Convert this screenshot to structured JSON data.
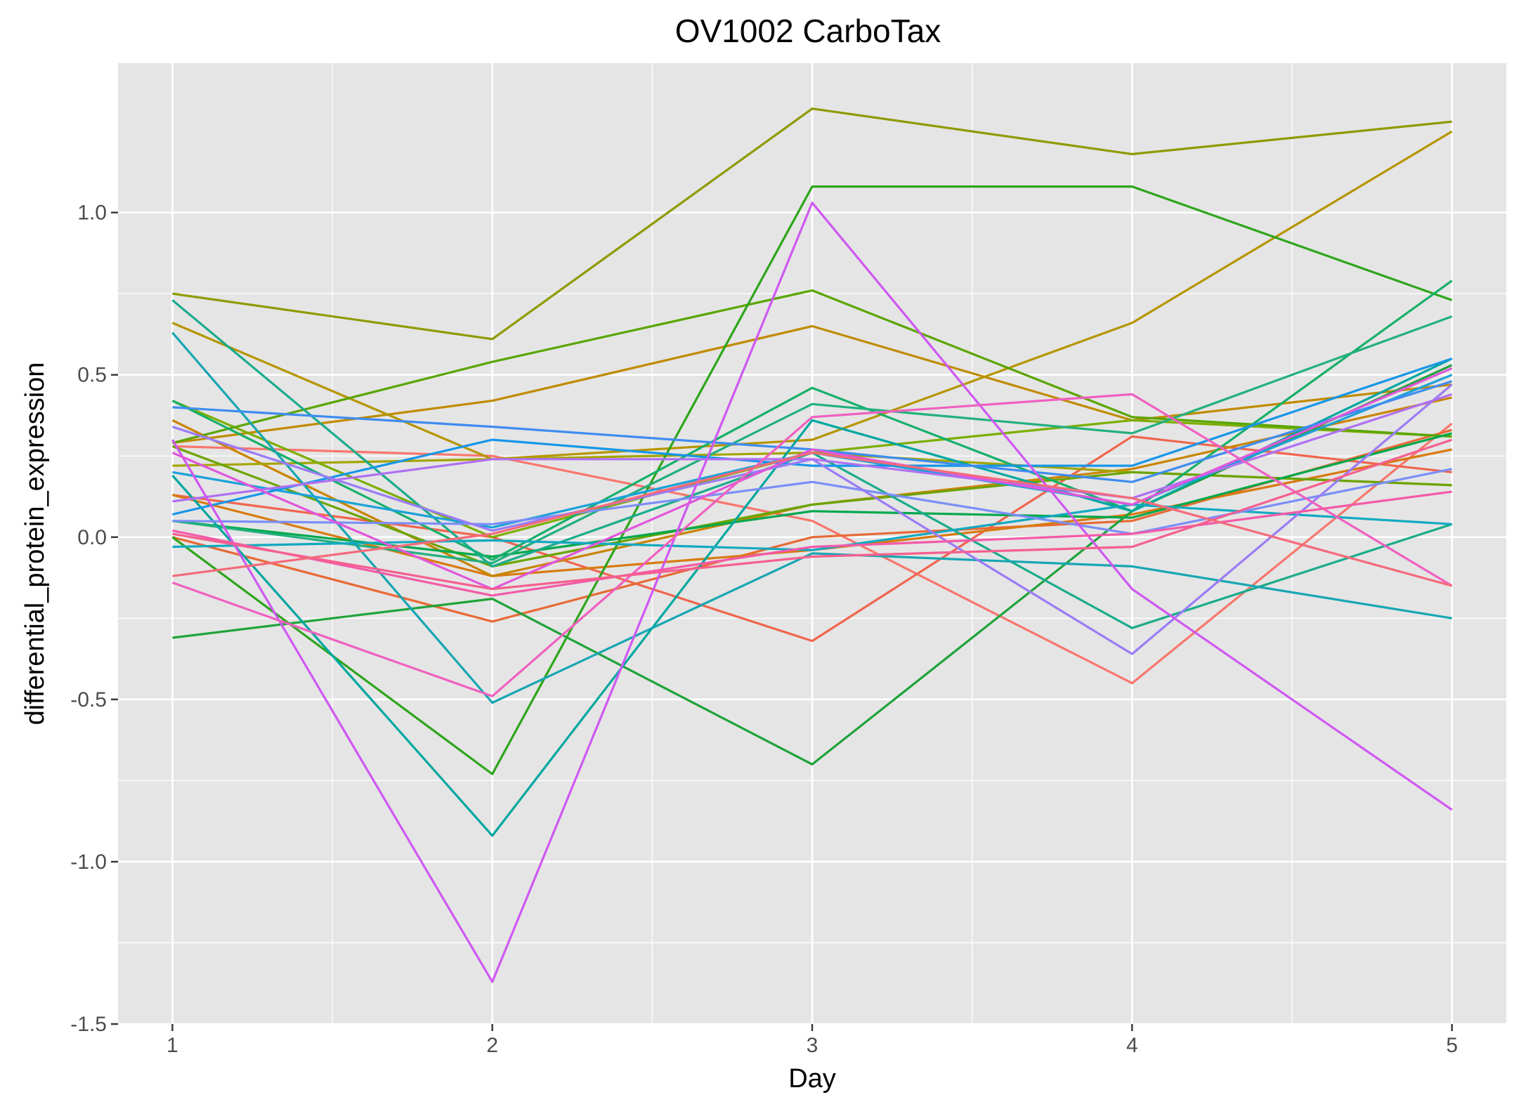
{
  "chart_data": {
    "type": "line",
    "title": "OV1002 CarboTax",
    "xlabel": "Day",
    "ylabel": "differential_protein_expression",
    "x": [
      1,
      2,
      3,
      4,
      5
    ],
    "xlim": [
      0.83,
      5.17
    ],
    "ylim": [
      -1.5,
      1.46
    ],
    "xticks": [
      "1",
      "2",
      "3",
      "4",
      "5"
    ],
    "yticks": [
      "-1.5",
      "-1.0",
      "-0.5",
      "0.0",
      "0.5",
      "1.0"
    ],
    "ytick_values": [
      -1.5,
      -1.0,
      -0.5,
      0.0,
      0.5,
      1.0
    ],
    "grid": true,
    "legend": "none",
    "background": "#e5e5e5",
    "series": [
      {
        "color": "#f8766d",
        "values": [
          0.28,
          0.25,
          0.05,
          -0.45,
          0.35
        ]
      },
      {
        "color": "#f0654e",
        "values": [
          0.13,
          0.0,
          -0.32,
          0.31,
          0.2
        ]
      },
      {
        "color": "#e86a36",
        "values": [
          0.0,
          -0.26,
          0.0,
          0.05,
          0.33
        ]
      },
      {
        "color": "#d87a10",
        "values": [
          0.13,
          -0.12,
          -0.04,
          0.07,
          0.27
        ]
      },
      {
        "color": "#c98400",
        "values": [
          0.36,
          -0.12,
          0.1,
          0.21,
          0.43
        ]
      },
      {
        "color": "#c08b00",
        "values": [
          0.29,
          0.42,
          0.65,
          0.36,
          0.47
        ]
      },
      {
        "color": "#b59500",
        "values": [
          0.66,
          0.24,
          0.3,
          0.66,
          1.25
        ]
      },
      {
        "color": "#a3a500",
        "values": [
          0.22,
          0.24,
          0.26,
          0.2,
          0.16
        ]
      },
      {
        "color": "#8f9a00",
        "values": [
          0.75,
          0.61,
          1.32,
          1.18,
          1.28
        ]
      },
      {
        "color": "#7cae00",
        "values": [
          0.42,
          0.0,
          0.26,
          0.36,
          0.31
        ]
      },
      {
        "color": "#6ba400",
        "values": [
          0.28,
          -0.09,
          0.1,
          0.2,
          0.16
        ]
      },
      {
        "color": "#5aa500",
        "values": [
          0.29,
          0.54,
          0.76,
          0.37,
          0.31
        ]
      },
      {
        "color": "#2ea51c",
        "values": [
          0.0,
          -0.73,
          1.08,
          1.08,
          0.73
        ]
      },
      {
        "color": "#1fa33a",
        "values": [
          -0.31,
          -0.19,
          -0.7,
          0.08,
          0.53
        ]
      },
      {
        "color": "#00a84c",
        "values": [
          0.05,
          -0.06,
          0.08,
          0.06,
          0.32
        ]
      },
      {
        "color": "#16b06a",
        "values": [
          0.42,
          -0.07,
          0.46,
          0.08,
          0.79
        ]
      },
      {
        "color": "#22b07e",
        "values": [
          0.05,
          -0.08,
          0.41,
          0.32,
          0.68
        ]
      },
      {
        "color": "#1aac8c",
        "values": [
          0.73,
          -0.09,
          0.26,
          -0.28,
          0.04
        ]
      },
      {
        "color": "#00a7a0",
        "values": [
          0.19,
          -0.92,
          0.36,
          0.08,
          0.55
        ]
      },
      {
        "color": "#17a6b2",
        "values": [
          0.63,
          -0.51,
          -0.05,
          -0.09,
          -0.25
        ]
      },
      {
        "color": "#12a9c0",
        "values": [
          -0.03,
          -0.01,
          -0.04,
          0.1,
          0.04
        ]
      },
      {
        "color": "#1ba2d8",
        "values": [
          0.2,
          0.03,
          0.26,
          0.1,
          0.5
        ]
      },
      {
        "color": "#1696e8",
        "values": [
          0.07,
          0.3,
          0.22,
          0.22,
          0.55
        ]
      },
      {
        "color": "#3e8cf0",
        "values": [
          0.4,
          0.34,
          0.27,
          0.17,
          0.48
        ]
      },
      {
        "color": "#7a8ef8",
        "values": [
          0.05,
          0.04,
          0.17,
          0.01,
          0.21
        ]
      },
      {
        "color": "#9b7bf6",
        "values": [
          0.34,
          0.02,
          0.24,
          -0.36,
          0.47
        ]
      },
      {
        "color": "#b070f2",
        "values": [
          0.11,
          0.24,
          0.24,
          0.12,
          0.44
        ]
      },
      {
        "color": "#cf58f2",
        "values": [
          0.3,
          -1.37,
          1.03,
          -0.16,
          -0.84
        ]
      },
      {
        "color": "#e056dc",
        "values": [
          0.26,
          -0.16,
          0.27,
          0.1,
          0.52
        ]
      },
      {
        "color": "#f060c0",
        "values": [
          -0.14,
          -0.49,
          0.37,
          0.44,
          -0.15
        ]
      },
      {
        "color": "#f35aa8",
        "values": [
          0.02,
          -0.18,
          -0.03,
          0.01,
          0.14
        ]
      },
      {
        "color": "#f55f8e",
        "values": [
          0.01,
          -0.16,
          -0.06,
          -0.03,
          0.3
        ]
      },
      {
        "color": "#f46a7a",
        "values": [
          -0.12,
          0.01,
          0.26,
          0.12,
          -0.15
        ]
      }
    ]
  }
}
